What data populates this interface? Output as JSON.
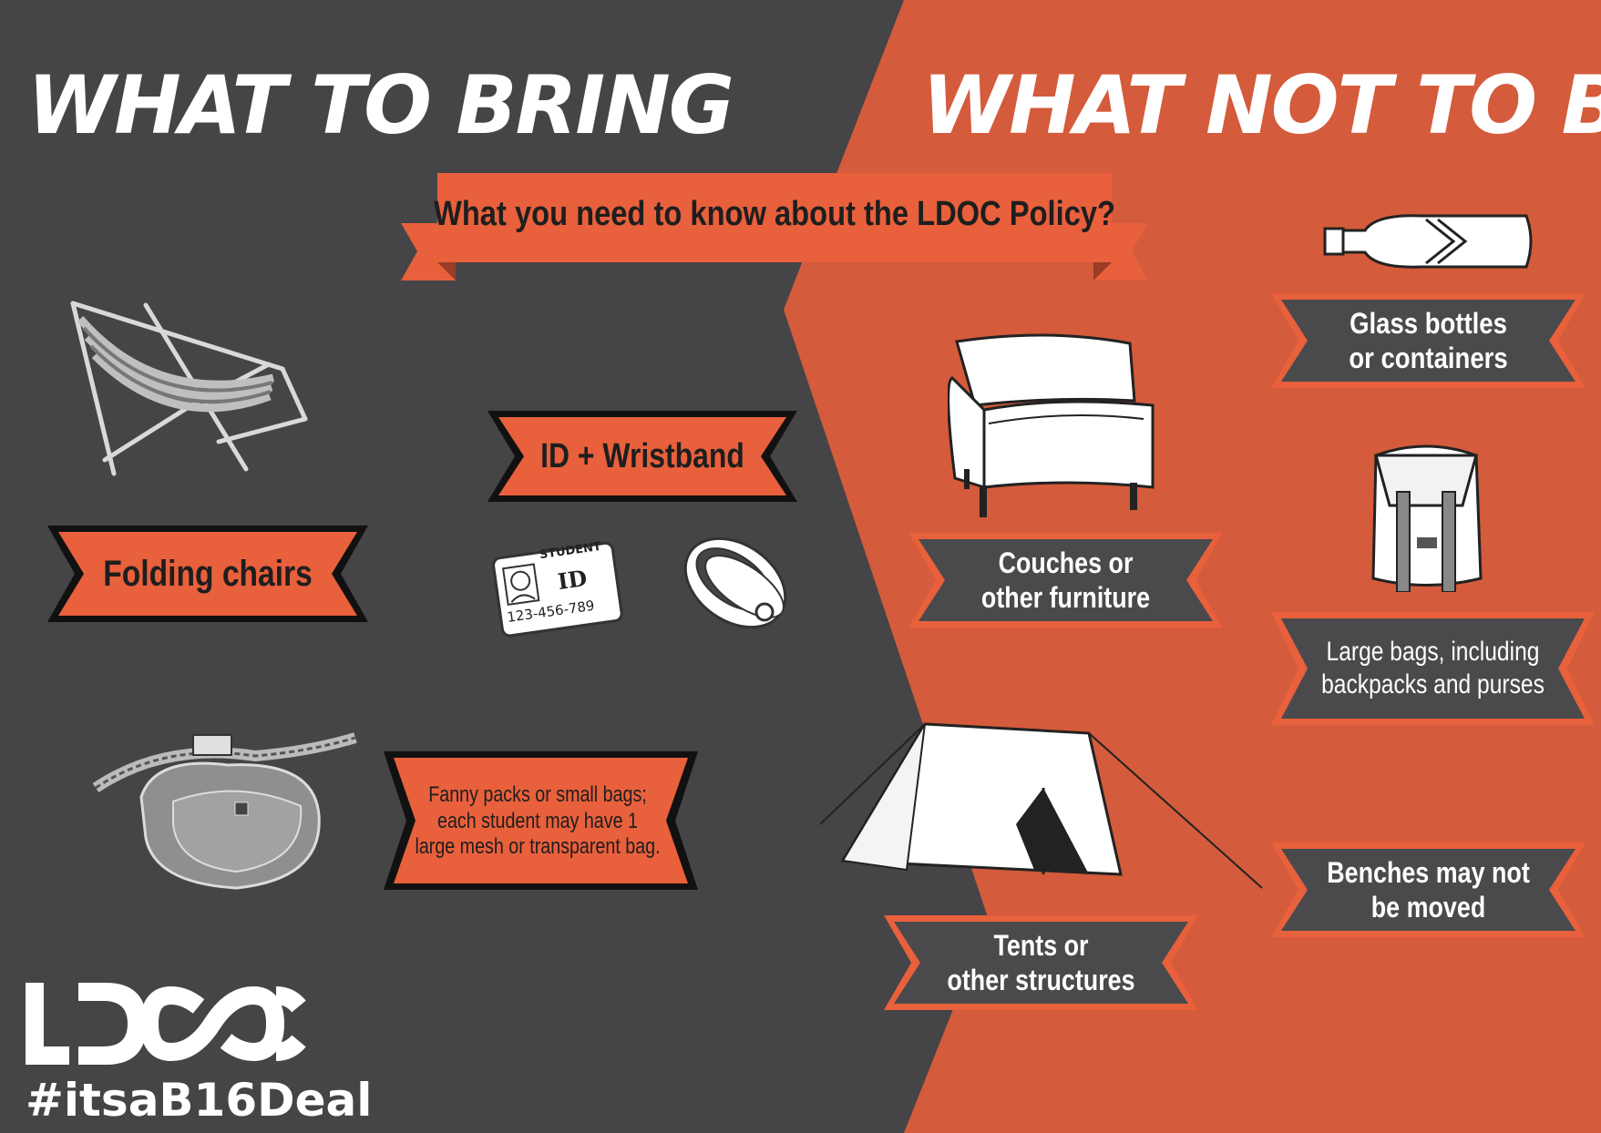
{
  "headings": {
    "bring": "WHAT TO BRING",
    "not_bring": "WHAT NOT TO BRING"
  },
  "policy_banner": "What you need to know about the LDOC Policy?",
  "bring_items": {
    "folding_chairs": "Folding chairs",
    "id_wristband": "ID + Wristband",
    "student_id_card": {
      "top": "STUDENT",
      "big": "ID",
      "number": "123-456-789"
    },
    "fanny_packs": [
      "Fanny packs or small bags;",
      "each student may have 1",
      "large mesh or transparent bag."
    ]
  },
  "not_bring_items": {
    "glass_bottles": [
      "Glass bottles",
      "or containers"
    ],
    "couches": [
      "Couches or",
      "other furniture"
    ],
    "large_bags": [
      "Large bags, including",
      "backpacks and purses"
    ],
    "tents": [
      "Tents or",
      "other structures"
    ],
    "benches": [
      "Benches may not",
      "be moved"
    ]
  },
  "footer": {
    "logo": "LDOC",
    "hashtag": "#itsaB16Deal"
  },
  "colors": {
    "dark_bg": "#454446",
    "orange_bg": "#d45b3b",
    "banner_orange": "#e8603c",
    "banner_dark": "#4a4a4d",
    "white": "#ffffff"
  },
  "icons": [
    "deck-chair-icon",
    "id-card-icon",
    "wristband-icon",
    "fanny-pack-icon",
    "glass-bottle-icon",
    "armchair-icon",
    "backpack-icon",
    "tent-icon"
  ]
}
